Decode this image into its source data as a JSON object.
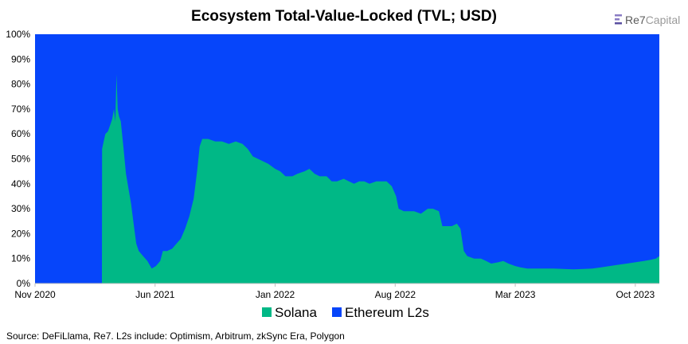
{
  "logo": {
    "part1": "Re7",
    "part2": "Capital"
  },
  "chart_data": {
    "type": "area",
    "stacked": true,
    "normalized": true,
    "title": "Ecosystem Total-Value-Locked (TVL; USD)",
    "xlabel": "",
    "ylabel": "",
    "ylim": [
      0,
      100
    ],
    "y_ticks": [
      "0%",
      "10%",
      "20%",
      "30%",
      "40%",
      "50%",
      "60%",
      "70%",
      "80%",
      "90%",
      "100%"
    ],
    "x_ticks": [
      {
        "label": "Nov 2020",
        "t": 0
      },
      {
        "label": "Jun 2021",
        "t": 7
      },
      {
        "label": "Jan 2022",
        "t": 14
      },
      {
        "label": "Aug 2022",
        "t": 21
      },
      {
        "label": "Mar 2023",
        "t": 28
      },
      {
        "label": "Oct 2023",
        "t": 35
      }
    ],
    "x_range_months": [
      0,
      36.4
    ],
    "colors": {
      "Solana": "#00b886",
      "Ethereum L2s": "#0645fa"
    },
    "series": [
      {
        "name": "Solana",
        "points": [
          [
            0,
            0
          ],
          [
            3.9,
            0
          ],
          [
            3.91,
            54
          ],
          [
            4.0,
            57
          ],
          [
            4.1,
            60
          ],
          [
            4.25,
            61
          ],
          [
            4.4,
            64
          ],
          [
            4.5,
            66
          ],
          [
            4.6,
            70
          ],
          [
            4.68,
            65
          ],
          [
            4.75,
            84
          ],
          [
            4.82,
            70
          ],
          [
            4.9,
            67
          ],
          [
            5.0,
            65
          ],
          [
            5.15,
            55
          ],
          [
            5.3,
            44
          ],
          [
            5.45,
            38
          ],
          [
            5.6,
            32
          ],
          [
            5.75,
            24
          ],
          [
            5.9,
            16
          ],
          [
            6.05,
            13
          ],
          [
            6.3,
            11
          ],
          [
            6.55,
            9
          ],
          [
            6.8,
            6
          ],
          [
            7.05,
            7
          ],
          [
            7.3,
            9
          ],
          [
            7.45,
            13
          ],
          [
            7.7,
            13
          ],
          [
            8.0,
            14
          ],
          [
            8.25,
            16
          ],
          [
            8.5,
            18
          ],
          [
            8.75,
            22
          ],
          [
            9.0,
            27
          ],
          [
            9.25,
            34
          ],
          [
            9.45,
            45
          ],
          [
            9.6,
            55
          ],
          [
            9.75,
            58
          ],
          [
            10.1,
            58
          ],
          [
            10.5,
            57
          ],
          [
            10.9,
            57
          ],
          [
            11.3,
            56
          ],
          [
            11.7,
            57
          ],
          [
            12.1,
            56
          ],
          [
            12.4,
            54
          ],
          [
            12.7,
            51
          ],
          [
            13.0,
            50
          ],
          [
            13.3,
            49
          ],
          [
            13.6,
            48
          ],
          [
            14.0,
            46
          ],
          [
            14.3,
            45
          ],
          [
            14.6,
            43
          ],
          [
            15.0,
            43
          ],
          [
            15.3,
            44
          ],
          [
            15.7,
            45
          ],
          [
            16.0,
            46
          ],
          [
            16.3,
            44
          ],
          [
            16.6,
            43
          ],
          [
            17.0,
            43
          ],
          [
            17.3,
            41
          ],
          [
            17.6,
            41
          ],
          [
            18.0,
            42
          ],
          [
            18.3,
            41
          ],
          [
            18.6,
            40
          ],
          [
            18.9,
            41
          ],
          [
            19.2,
            41
          ],
          [
            19.5,
            40
          ],
          [
            19.9,
            41
          ],
          [
            20.2,
            41
          ],
          [
            20.5,
            41
          ],
          [
            20.8,
            39
          ],
          [
            21.05,
            35
          ],
          [
            21.2,
            30
          ],
          [
            21.5,
            29
          ],
          [
            21.8,
            29
          ],
          [
            22.1,
            29
          ],
          [
            22.5,
            28
          ],
          [
            22.9,
            30
          ],
          [
            23.2,
            30
          ],
          [
            23.55,
            29
          ],
          [
            23.75,
            23
          ],
          [
            24.0,
            23
          ],
          [
            24.3,
            23
          ],
          [
            24.6,
            24
          ],
          [
            24.8,
            22
          ],
          [
            25.0,
            13
          ],
          [
            25.2,
            11
          ],
          [
            25.6,
            10
          ],
          [
            26.0,
            10
          ],
          [
            26.3,
            9
          ],
          [
            26.6,
            8
          ],
          [
            27.0,
            8.5
          ],
          [
            27.3,
            9
          ],
          [
            27.6,
            8
          ],
          [
            28.0,
            7
          ],
          [
            28.3,
            6.5
          ],
          [
            28.7,
            6
          ],
          [
            29.2,
            6
          ],
          [
            29.7,
            6
          ],
          [
            30.2,
            6
          ],
          [
            30.8,
            5.8
          ],
          [
            31.4,
            5.7
          ],
          [
            32.0,
            5.8
          ],
          [
            32.5,
            6
          ],
          [
            33.0,
            6.5
          ],
          [
            33.5,
            7
          ],
          [
            34.0,
            7.5
          ],
          [
            34.5,
            8
          ],
          [
            35.0,
            8.5
          ],
          [
            35.5,
            9
          ],
          [
            35.9,
            9.5
          ],
          [
            36.2,
            10
          ],
          [
            36.4,
            11
          ]
        ]
      },
      {
        "name": "Ethereum L2s",
        "note": "fills remainder to 100%"
      }
    ],
    "legend": [
      "Solana",
      "Ethereum L2s"
    ],
    "legend_position": "bottom-center",
    "source": "Source: DeFiLlama, Re7. L2s include: Optimism, Arbitrum, zkSync Era, Polygon"
  }
}
